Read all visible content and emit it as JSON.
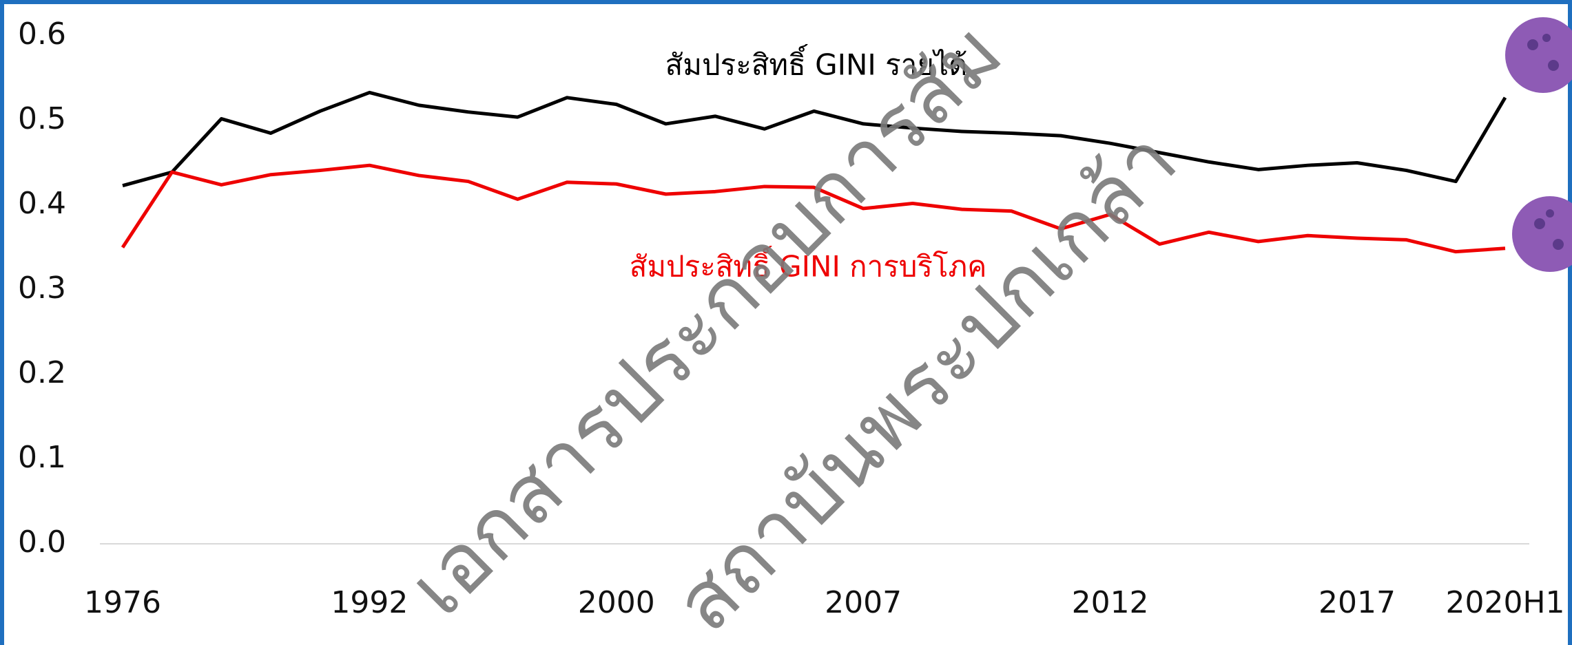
{
  "chart_data": {
    "type": "line",
    "categories": [
      "1976",
      null,
      null,
      null,
      null,
      "1992",
      null,
      null,
      null,
      null,
      "2000",
      null,
      null,
      null,
      null,
      "2007",
      null,
      null,
      null,
      null,
      "2012",
      null,
      null,
      null,
      null,
      "2017",
      null,
      null,
      "2020H1"
    ],
    "series": [
      {
        "name": "สัมประสิทธิ์ GINI รายได้",
        "color": "#000000",
        "values": [
          0.423,
          0.439,
          0.502,
          0.485,
          0.511,
          0.533,
          0.518,
          0.51,
          0.504,
          0.527,
          0.519,
          0.496,
          0.505,
          0.49,
          0.511,
          0.496,
          0.491,
          0.487,
          0.485,
          0.482,
          0.473,
          0.462,
          0.451,
          0.442,
          0.447,
          0.45,
          0.441,
          0.428,
          0.527
        ]
      },
      {
        "name": "สัมประสิทธิ์ GINI การบริโภค",
        "color": "#ee0000",
        "values": [
          0.35,
          0.439,
          0.424,
          0.436,
          0.441,
          0.447,
          0.435,
          0.428,
          0.407,
          0.427,
          0.425,
          0.413,
          0.416,
          0.422,
          0.421,
          0.396,
          0.402,
          0.395,
          0.393,
          0.372,
          0.389,
          0.354,
          0.368,
          0.357,
          0.364,
          0.361,
          0.359,
          0.345,
          0.349
        ]
      }
    ],
    "ylim": [
      0,
      0.6
    ],
    "yticks": [
      {
        "value": 0,
        "label": "0.0"
      },
      0.1,
      0.2,
      0.3,
      0.4,
      0.5,
      0.6
    ],
    "grid": false,
    "watermark": [
      "เอกสารประกอบการสัม",
      "สถาบันพระปกเกล้า"
    ]
  }
}
